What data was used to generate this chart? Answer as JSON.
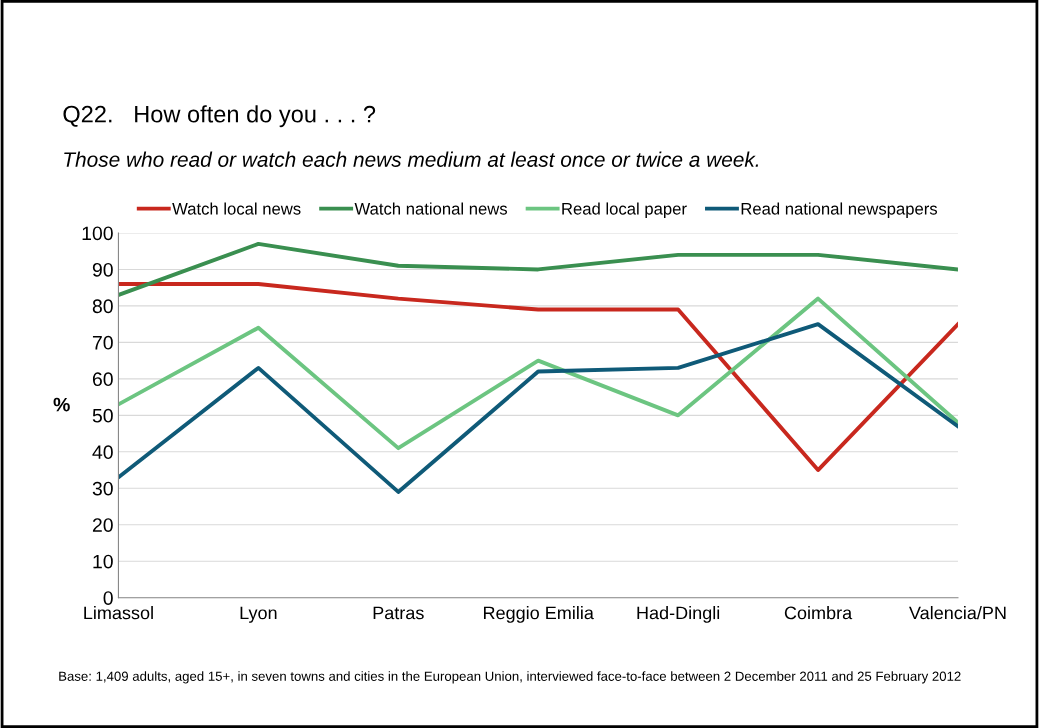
{
  "chart_data": {
    "type": "line",
    "title": "Q22.   How often do you . . . ?",
    "subtitle": "Those who read or watch each news medium at least once or twice a week.",
    "ylabel": "%",
    "categories": [
      "Limassol",
      "Lyon",
      "Patras",
      "Reggio Emilia",
      "Had-Dingli",
      "Coimbra",
      "Valencia/PN"
    ],
    "series": [
      {
        "name": "Watch local news",
        "color": "#c8281e",
        "values": [
          86,
          86,
          82,
          79,
          79,
          35,
          75
        ]
      },
      {
        "name": "Watch national news",
        "color": "#3a8f50",
        "values": [
          83,
          97,
          91,
          90,
          94,
          94,
          90
        ]
      },
      {
        "name": "Read local paper",
        "color": "#6cc581",
        "values": [
          53,
          74,
          41,
          65,
          50,
          82,
          48
        ]
      },
      {
        "name": "Read national newspapers",
        "color": "#0f5a78",
        "values": [
          33,
          63,
          29,
          62,
          63,
          75,
          47
        ]
      }
    ],
    "ylim": [
      0,
      100
    ],
    "yticks": [
      0,
      10,
      20,
      30,
      40,
      50,
      60,
      70,
      80,
      90,
      100
    ],
    "grid": "y",
    "legend": "top",
    "marker": "none",
    "line_style": "solid",
    "annotations": [
      "Base: 1,409 adults, aged 15+, in seven towns and cities in the European Union, interviewed face-to-face between 2 December 2011 and 25 February 2012"
    ]
  }
}
